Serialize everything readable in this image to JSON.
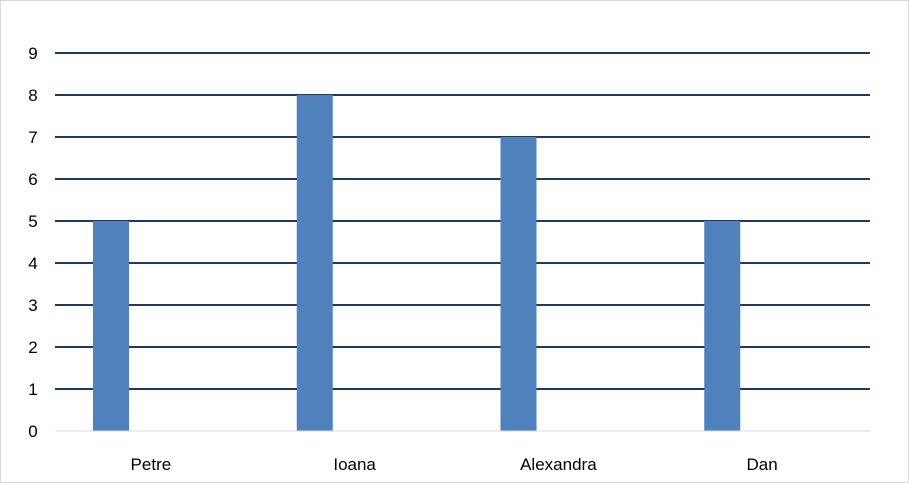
{
  "chart_data": {
    "type": "bar",
    "categories": [
      "Petre",
      "Ioana",
      "Alexandra",
      "Dan"
    ],
    "values": [
      5,
      8,
      7,
      5
    ],
    "title": "",
    "xlabel": "",
    "ylabel": "",
    "ylim": [
      0,
      9
    ],
    "yticks": [
      "0",
      "1",
      "2",
      "3",
      "4",
      "5",
      "6",
      "7",
      "8",
      "9"
    ],
    "grid": true,
    "legend": "none",
    "colors": {
      "bar": "#4f81bd",
      "gridline": "#1f3864",
      "axis": "#d9d9d9"
    }
  }
}
